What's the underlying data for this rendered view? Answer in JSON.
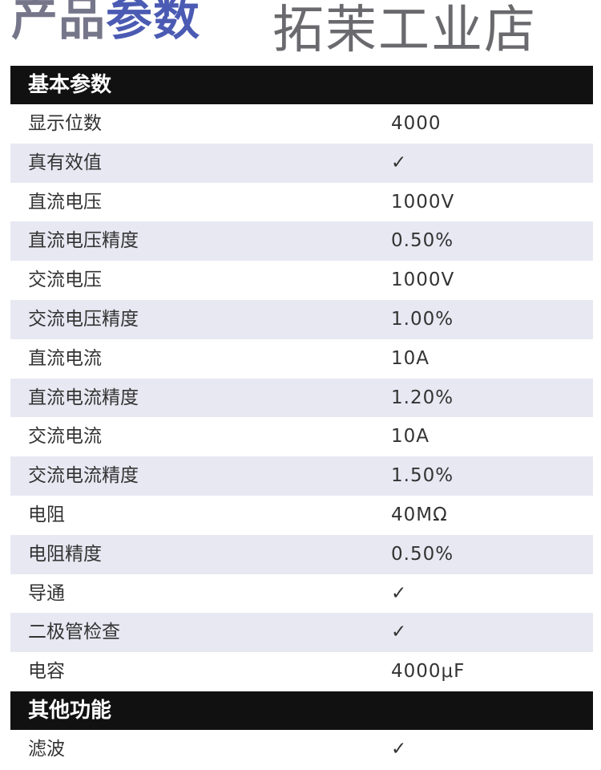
{
  "title": {
    "part1": "产品",
    "part2": "参数"
  },
  "sections": [
    {
      "header": "基本参数",
      "rows": [
        {
          "label": "显示位数",
          "value": "4000"
        },
        {
          "label": "真有效值",
          "value": "✓"
        },
        {
          "label": "直流电压",
          "value": "1000V"
        },
        {
          "label": "直流电压精度",
          "value": "0.50%"
        },
        {
          "label": "交流电压",
          "value": "1000V"
        },
        {
          "label": "交流电压精度",
          "value": "1.00%"
        },
        {
          "label": "直流电流",
          "value": "10A"
        },
        {
          "label": "直流电流精度",
          "value": "1.20%"
        },
        {
          "label": "交流电流",
          "value": "10A"
        },
        {
          "label": "交流电流精度",
          "value": "1.50%"
        },
        {
          "label": "电阻",
          "value": "40MΩ"
        },
        {
          "label": "电阻精度",
          "value": "0.50%"
        },
        {
          "label": "导通",
          "value": "✓"
        },
        {
          "label": "二极管检查",
          "value": "✓"
        },
        {
          "label": "电容",
          "value": "4000μF"
        }
      ]
    },
    {
      "header": "其他功能",
      "rows": [
        {
          "label": "滤波",
          "value": "✓"
        }
      ]
    }
  ],
  "watermark": "拓茉工业店"
}
